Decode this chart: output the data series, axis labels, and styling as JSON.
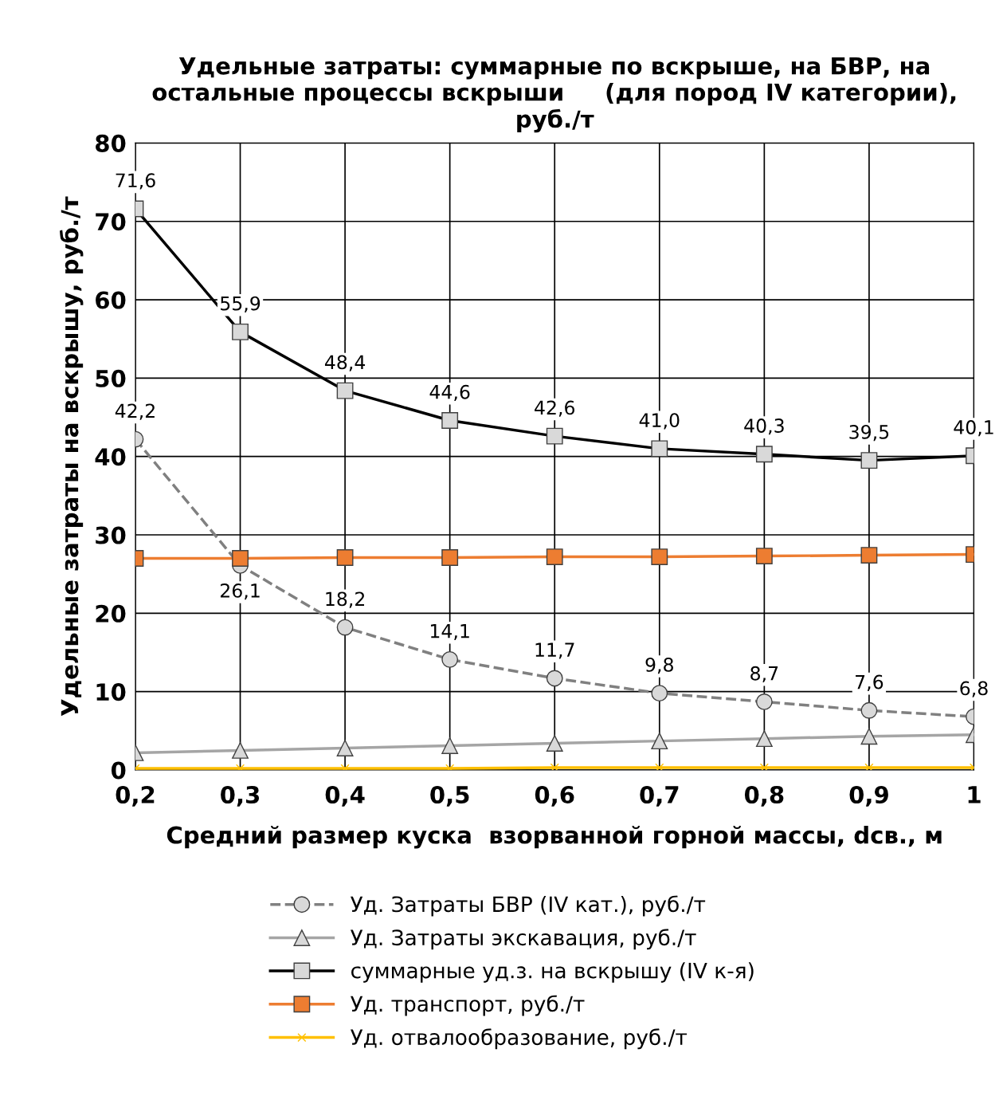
{
  "chart_data": {
    "type": "line",
    "title": "Удельные затраты: суммарные по вскрыше, на БВР, на\nостальные процессы вскрыши     (для пород IV категории),\nруб./т",
    "xlabel": "Средний размер куска  взорванной горной массы, dсв., м",
    "ylabel": "Удельные затраты на вскрышу, руб./т",
    "x": [
      0.2,
      0.3,
      0.4,
      0.5,
      0.6,
      0.7,
      0.8,
      0.9,
      1
    ],
    "xlim": [
      0.2,
      1
    ],
    "xticks": [
      {
        "value": 0.2,
        "label": "0,2"
      },
      {
        "value": 0.3,
        "label": "0,3"
      },
      {
        "value": 0.4,
        "label": "0,4"
      },
      {
        "value": 0.5,
        "label": "0,5"
      },
      {
        "value": 0.6,
        "label": "0,6"
      },
      {
        "value": 0.7,
        "label": "0,7"
      },
      {
        "value": 0.8,
        "label": "0,8"
      },
      {
        "value": 0.9,
        "label": "0,9"
      },
      {
        "value": 1,
        "label": "1"
      }
    ],
    "ylim": [
      0,
      80
    ],
    "yticks": [
      0,
      10,
      20,
      30,
      40,
      50,
      60,
      70,
      80
    ],
    "grid": true,
    "legend": "bottom",
    "series": [
      {
        "name": "Уд. Затраты БВР (IV кат.), руб./т",
        "color": "#808080",
        "marker": "circle",
        "line_style": "dashed",
        "values": [
          42.2,
          26.1,
          18.2,
          14.1,
          11.7,
          9.8,
          8.7,
          7.6,
          6.8
        ],
        "value_labels": [
          "42,2",
          "26,1",
          "18,2",
          "14,1",
          "11,7",
          "9,8",
          "8,7",
          "7,6",
          "6,8"
        ]
      },
      {
        "name": "Уд. Затраты экскавация, руб./т",
        "color": "#a5a5a5",
        "marker": "triangle",
        "line_style": "solid",
        "values": [
          2.2,
          2.5,
          2.8,
          3.1,
          3.4,
          3.7,
          4.0,
          4.3,
          4.5
        ]
      },
      {
        "name": "суммарные уд.з. на вскрышу (IV к-я)",
        "color": "#000000",
        "marker": "square",
        "line_style": "solid",
        "values": [
          71.6,
          55.9,
          48.4,
          44.6,
          42.6,
          41.0,
          40.3,
          39.5,
          40.1
        ],
        "value_labels": [
          "71,6",
          "55,9",
          "48,4",
          "44,6",
          "42,6",
          "41,0",
          "40,3",
          "39,5",
          "40,1"
        ]
      },
      {
        "name": "Уд. транспорт, руб./т",
        "color": "#ed7d31",
        "marker": "square",
        "line_style": "solid",
        "values": [
          27.0,
          27.0,
          27.1,
          27.1,
          27.2,
          27.2,
          27.3,
          27.4,
          27.5
        ]
      },
      {
        "name": "Уд. отвалообразование, руб./т",
        "color": "#ffc000",
        "marker": "cross",
        "line_style": "solid",
        "values": [
          0.2,
          0.2,
          0.2,
          0.2,
          0.3,
          0.3,
          0.3,
          0.3,
          0.3
        ]
      }
    ]
  }
}
